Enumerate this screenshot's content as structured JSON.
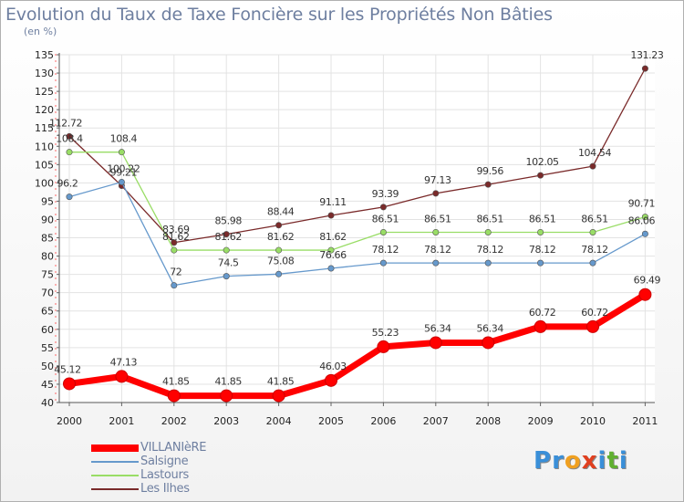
{
  "chart_data": {
    "type": "line",
    "title": "Evolution du Taux de Taxe Foncière sur les Propriétés Non Bâties",
    "subtitle": "(en %)",
    "xlabel": "",
    "ylabel": "",
    "categories": [
      "2000",
      "2001",
      "2002",
      "2003",
      "2004",
      "2005",
      "2006",
      "2007",
      "2008",
      "2009",
      "2010",
      "2011"
    ],
    "ylim": [
      40,
      135
    ],
    "yticks": [
      40,
      45,
      50,
      55,
      60,
      65,
      70,
      75,
      80,
      85,
      90,
      95,
      100,
      105,
      110,
      115,
      120,
      125,
      130,
      135
    ],
    "grid": true,
    "legend_position": "bottom-left",
    "series": [
      {
        "name": "VILLANIèRE",
        "color": "#ff0000",
        "values": [
          45.12,
          47.13,
          41.85,
          41.85,
          41.85,
          46.03,
          55.23,
          56.34,
          56.34,
          60.72,
          60.72,
          69.49
        ],
        "labels": [
          "45.12",
          "47.13",
          "41.85",
          "41.85",
          "41.85",
          "46.03",
          "55.23",
          "56.34",
          "56.34",
          "60.72",
          "60.72",
          "69.49"
        ]
      },
      {
        "name": "Salsigne",
        "color": "#6699cc",
        "values": [
          96.2,
          100.22,
          72,
          74.5,
          75.08,
          76.66,
          78.12,
          78.12,
          78.12,
          78.12,
          78.12,
          86.06
        ],
        "labels": [
          "96.2",
          "100.22",
          "72",
          "74.5",
          "75.08",
          "76.66",
          "78.12",
          "78.12",
          "78.12",
          "78.12",
          "78.12",
          "86.06"
        ]
      },
      {
        "name": "Lastours",
        "color": "#99dd66",
        "values": [
          108.4,
          108.4,
          81.62,
          81.62,
          81.62,
          81.62,
          86.51,
          86.51,
          86.51,
          86.51,
          86.51,
          90.71
        ],
        "labels": [
          "108.4",
          "108.4",
          "81.62",
          "81.62",
          "81.62",
          "81.62",
          "86.51",
          "86.51",
          "86.51",
          "86.51",
          "86.51",
          "90.71"
        ]
      },
      {
        "name": "Les Ilhes",
        "color": "#7a2a2a",
        "values": [
          112.72,
          99.21,
          83.69,
          85.98,
          88.44,
          91.11,
          93.39,
          97.13,
          99.56,
          102.05,
          104.54,
          131.23
        ],
        "labels": [
          "112.72",
          "99.21",
          "83.69",
          "85.98",
          "88.44",
          "91.11",
          "93.39",
          "97.13",
          "99.56",
          "102.05",
          "104.54",
          "131.23"
        ]
      }
    ]
  },
  "branding": {
    "logo_letters": [
      {
        "ch": "P",
        "color": "#3a8fd8"
      },
      {
        "ch": "r",
        "color": "#3a8fd8"
      },
      {
        "ch": "o",
        "color": "#f0a020"
      },
      {
        "ch": "x",
        "color": "#e04020"
      },
      {
        "ch": "i",
        "color": "#3a8fd8"
      },
      {
        "ch": "t",
        "color": "#60b030"
      },
      {
        "ch": "i",
        "color": "#3a8fd8"
      }
    ]
  }
}
